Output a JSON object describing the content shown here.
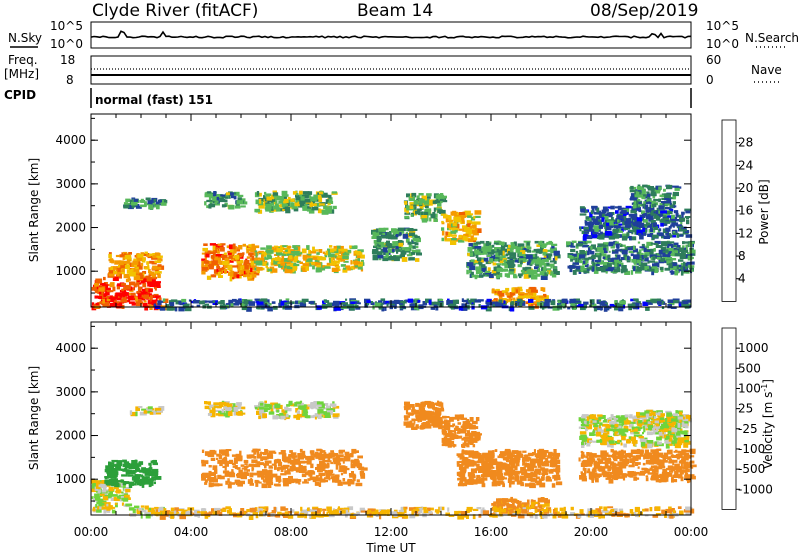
{
  "header": {
    "station": "Clyde River (fitACF)",
    "beam": "Beam 14",
    "date": "08/Sep/2019"
  },
  "noise_panel": {
    "left_label": "N.Sky",
    "left_ticks": [
      "10^5",
      "10^0"
    ],
    "right_ticks": [
      "10^5",
      "10^0"
    ],
    "right_label": "N.Search",
    "right_legend_style": "dotted"
  },
  "freq_panel": {
    "left_label_1": "Freq.",
    "left_label_2": "[MHz]",
    "left_ticks": [
      "18",
      "8"
    ],
    "right_ticks": [
      "60",
      "0"
    ],
    "right_label": "Nave",
    "right_legend_style": "dotted"
  },
  "cpid_panel": {
    "label": "CPID",
    "value": "normal (fast) 151"
  },
  "chart_data": [
    {
      "type": "heatmap",
      "panel": "power",
      "ylabel": "Slant Range [km]",
      "yticks": [
        "1000",
        "2000",
        "3000",
        "4000"
      ],
      "ylim": [
        180,
        4600
      ],
      "x_unit": "hours UT",
      "xlim": [
        0,
        24
      ],
      "colorbar": {
        "label": "Power [dB]",
        "ticks": [
          "28",
          "24",
          "20",
          "16",
          "12",
          "8",
          "4"
        ],
        "colors": [
          "#0000ff",
          "#1f3f9a",
          "#2e7d5b",
          "#58b85a",
          "#f2c200",
          "#f59a00",
          "#f06000",
          "#ff0000"
        ]
      },
      "echo_regions": [
        {
          "t0": 0.0,
          "t1": 2.6,
          "r0": 200,
          "r1": 900,
          "power": 28
        },
        {
          "t0": 0.6,
          "t1": 2.7,
          "r0": 900,
          "r1": 1450,
          "power": 22
        },
        {
          "t0": 2.3,
          "t1": 2.9,
          "r0": 200,
          "r1": 450,
          "power": 26
        },
        {
          "t0": 4.4,
          "t1": 6.5,
          "r0": 880,
          "r1": 1650,
          "power": 24
        },
        {
          "t0": 6.5,
          "t1": 10.8,
          "r0": 1050,
          "r1": 1600,
          "power": 18
        },
        {
          "t0": 4.5,
          "t1": 6.0,
          "r0": 2500,
          "r1": 2850,
          "power": 12
        },
        {
          "t0": 6.5,
          "t1": 9.7,
          "r0": 2400,
          "r1": 2850,
          "power": 14
        },
        {
          "t0": 1.2,
          "t1": 2.8,
          "r0": 2500,
          "r1": 2700,
          "power": 10
        },
        {
          "t0": 11.2,
          "t1": 13.0,
          "r0": 1300,
          "r1": 2000,
          "power": 12
        },
        {
          "t0": 12.5,
          "t1": 14.0,
          "r0": 2200,
          "r1": 2800,
          "power": 14
        },
        {
          "t0": 14.0,
          "t1": 15.4,
          "r0": 1700,
          "r1": 2400,
          "power": 20
        },
        {
          "t0": 15.0,
          "t1": 18.6,
          "r0": 900,
          "r1": 1700,
          "power": 12
        },
        {
          "t0": 16.0,
          "t1": 18.2,
          "r0": 250,
          "r1": 650,
          "power": 22
        },
        {
          "t0": 19.0,
          "t1": 24.0,
          "r0": 1000,
          "r1": 1700,
          "power": 10
        },
        {
          "t0": 19.5,
          "t1": 23.8,
          "r0": 1800,
          "r1": 2500,
          "power": 8
        },
        {
          "t0": 21.5,
          "t1": 23.4,
          "r0": 2500,
          "r1": 3000,
          "power": 10
        },
        {
          "t0": 2.5,
          "t1": 24.0,
          "r0": 180,
          "r1": 380,
          "power": 8
        }
      ]
    },
    {
      "type": "heatmap",
      "panel": "velocity",
      "ylabel": "Slant Range [km]",
      "yticks": [
        "1000",
        "2000",
        "3000",
        "4000"
      ],
      "ylim": [
        180,
        4600
      ],
      "x_unit": "hours UT",
      "xlim": [
        0,
        24
      ],
      "xlabel": "Time UT",
      "xticks": [
        "00:00",
        "04:00",
        "08:00",
        "12:00",
        "16:00",
        "20:00",
        "00:00"
      ],
      "colorbar": {
        "label_main": "Velocity",
        "label_unit": "[m s",
        "label_sup": "-1",
        "label_end": "]",
        "ticks": [
          "1000",
          "500",
          "100",
          "25",
          "-25",
          "-100",
          "-500",
          "-1000"
        ],
        "colors": [
          "#ff0000",
          "#f55a00",
          "#f08a1e",
          "#f6b400",
          "#c8c8c8",
          "#6fd43c",
          "#2c9f3a",
          "#3c7a74",
          "#1b3fb0"
        ]
      },
      "echo_regions": [
        {
          "t0": 0.0,
          "t1": 1.4,
          "r0": 300,
          "r1": 1000,
          "velocity": 0
        },
        {
          "t0": 0.5,
          "t1": 2.6,
          "r0": 900,
          "r1": 1450,
          "velocity": 300
        },
        {
          "t0": 1.5,
          "t1": 2.9,
          "r0": 200,
          "r1": 400,
          "velocity": 0
        },
        {
          "t0": 4.4,
          "t1": 10.8,
          "r0": 880,
          "r1": 1700,
          "velocity": -300
        },
        {
          "t0": 4.5,
          "t1": 6.0,
          "r0": 2500,
          "r1": 2800,
          "velocity": 0
        },
        {
          "t0": 6.5,
          "t1": 9.7,
          "r0": 2450,
          "r1": 2800,
          "velocity": 0
        },
        {
          "t0": 1.5,
          "t1": 2.8,
          "r0": 2520,
          "r1": 2680,
          "velocity": 0
        },
        {
          "t0": 12.5,
          "t1": 14.0,
          "r0": 2200,
          "r1": 2800,
          "velocity": -300
        },
        {
          "t0": 14.0,
          "t1": 15.4,
          "r0": 1800,
          "r1": 2500,
          "velocity": -300
        },
        {
          "t0": 14.6,
          "t1": 18.6,
          "r0": 900,
          "r1": 1700,
          "velocity": -300
        },
        {
          "t0": 16.0,
          "t1": 18.2,
          "r0": 250,
          "r1": 600,
          "velocity": -150
        },
        {
          "t0": 19.5,
          "t1": 24.0,
          "r0": 1000,
          "r1": 1700,
          "velocity": -300
        },
        {
          "t0": 19.5,
          "t1": 23.8,
          "r0": 1800,
          "r1": 2500,
          "velocity": 0
        },
        {
          "t0": 21.8,
          "t1": 23.8,
          "r0": 2200,
          "r1": 2600,
          "velocity": 0
        },
        {
          "t0": 2.5,
          "t1": 24.0,
          "r0": 180,
          "r1": 380,
          "velocity": -60
        }
      ]
    }
  ]
}
